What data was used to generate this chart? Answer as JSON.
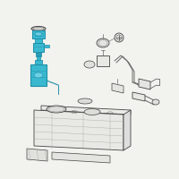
{
  "bg_color": "#f2f2ee",
  "line_color": "#666666",
  "line_color_dark": "#444444",
  "teal_fill": "#3ab8d0",
  "teal_stroke": "#1e8fa8",
  "teal_dark": "#2a9bb5",
  "teal_light": "#6dd0e4",
  "fig_width": 2.0,
  "fig_height": 2.0,
  "dpi": 100
}
